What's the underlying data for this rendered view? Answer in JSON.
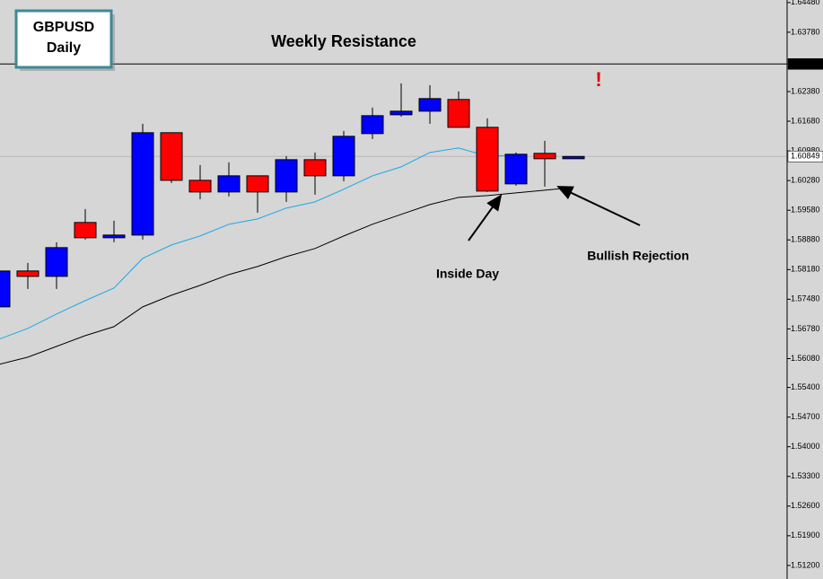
{
  "chart_data": {
    "type": "candlestick",
    "title": "GBPUSD",
    "subtitle": "Daily",
    "categories": [
      null,
      null,
      null,
      null,
      null,
      null,
      null,
      null,
      null,
      null,
      null,
      null,
      null,
      null,
      null,
      null,
      null,
      null,
      null,
      null,
      null
    ],
    "open": [
      1.573,
      1.58147,
      1.5802,
      1.59291,
      1.58931,
      1.58994,
      1.61409,
      1.60286,
      1.60011,
      1.60392,
      1.60011,
      1.60773,
      1.60392,
      1.61388,
      1.61832,
      1.61917,
      1.62193,
      1.61536,
      1.60202,
      1.60922,
      1.60795
    ],
    "high": [
      1.58147,
      1.58338,
      1.58825,
      1.59609,
      1.59333,
      1.61621,
      1.61409,
      1.60646,
      1.6071,
      1.60392,
      1.60858,
      1.60943,
      1.61451,
      1.62002,
      1.62574,
      1.62531,
      1.62383,
      1.61748,
      1.60943,
      1.61218,
      1.60858
    ],
    "low": [
      1.573,
      1.57724,
      1.57724,
      1.58888,
      1.58825,
      1.58888,
      1.60223,
      1.59842,
      1.59905,
      1.59524,
      1.59778,
      1.59947,
      1.60265,
      1.61261,
      1.6179,
      1.61621,
      1.61536,
      1.60011,
      1.60159,
      1.60138,
      1.60795
    ],
    "close": [
      1.58147,
      1.5802,
      1.58698,
      1.58931,
      1.58994,
      1.61409,
      1.60286,
      1.60011,
      1.60392,
      1.60011,
      1.60773,
      1.60392,
      1.61324,
      1.61811,
      1.61917,
      1.62214,
      1.61536,
      1.60032,
      1.60901,
      1.60795,
      1.60849
    ],
    "up_color": "#0000ff",
    "down_color": "#ff0000",
    "overlays": [
      {
        "color": "#1ea7e6",
        "values": [
          1.56537,
          1.56792,
          1.57131,
          1.57448,
          1.57745,
          1.58444,
          1.58761,
          1.58973,
          1.59249,
          1.59376,
          1.5963,
          1.59778,
          1.60075,
          1.60392,
          1.60604,
          1.60943,
          1.61049,
          1.60858,
          1.60879,
          null,
          null
        ]
      },
      {
        "color": "#000000",
        "values": [
          1.55944,
          1.56114,
          1.56368,
          1.56622,
          1.56834,
          1.573,
          1.57575,
          1.57808,
          1.58062,
          1.58253,
          1.58486,
          1.58677,
          1.58973,
          1.59249,
          1.59482,
          1.59714,
          1.59884,
          1.59926,
          1.5999,
          1.60053,
          1.60117
        ]
      }
    ],
    "levels": [
      {
        "value": 1.63031,
        "color": "#000000"
      },
      {
        "value": 1.60849,
        "color": "#b8b8b8"
      }
    ],
    "annotations": [
      {
        "text": "Weekly Resistance"
      },
      {
        "text": "!"
      },
      {
        "text": "Inside Day"
      },
      {
        "text": "Bullish Rejection"
      }
    ],
    "ylim": [
      1.5088,
      1.6454
    ],
    "yticks": [
      {
        "value": 1.6448,
        "label": "1.64480"
      },
      {
        "value": 1.6378,
        "label": "1.63780"
      },
      {
        "value": 1.6238,
        "label": "1.62380"
      },
      {
        "value": 1.6168,
        "label": "1.61680"
      },
      {
        "value": 1.6098,
        "label": "1.60980"
      },
      {
        "value": 1.6028,
        "label": "1.60280"
      },
      {
        "value": 1.5958,
        "label": "1.59580"
      },
      {
        "value": 1.5888,
        "label": "1.58880"
      },
      {
        "value": 1.5818,
        "label": "1.58180"
      },
      {
        "value": 1.5748,
        "label": "1.57480"
      },
      {
        "value": 1.5678,
        "label": "1.56780"
      },
      {
        "value": 1.5608,
        "label": "1.56080"
      },
      {
        "value": 1.554,
        "label": "1.55400"
      },
      {
        "value": 1.547,
        "label": "1.54700"
      },
      {
        "value": 1.54,
        "label": "1.54000"
      },
      {
        "value": 1.533,
        "label": "1.53300"
      },
      {
        "value": 1.526,
        "label": "1.52600"
      },
      {
        "value": 1.519,
        "label": "1.51900"
      },
      {
        "value": 1.512,
        "label": "1.51200"
      }
    ]
  }
}
